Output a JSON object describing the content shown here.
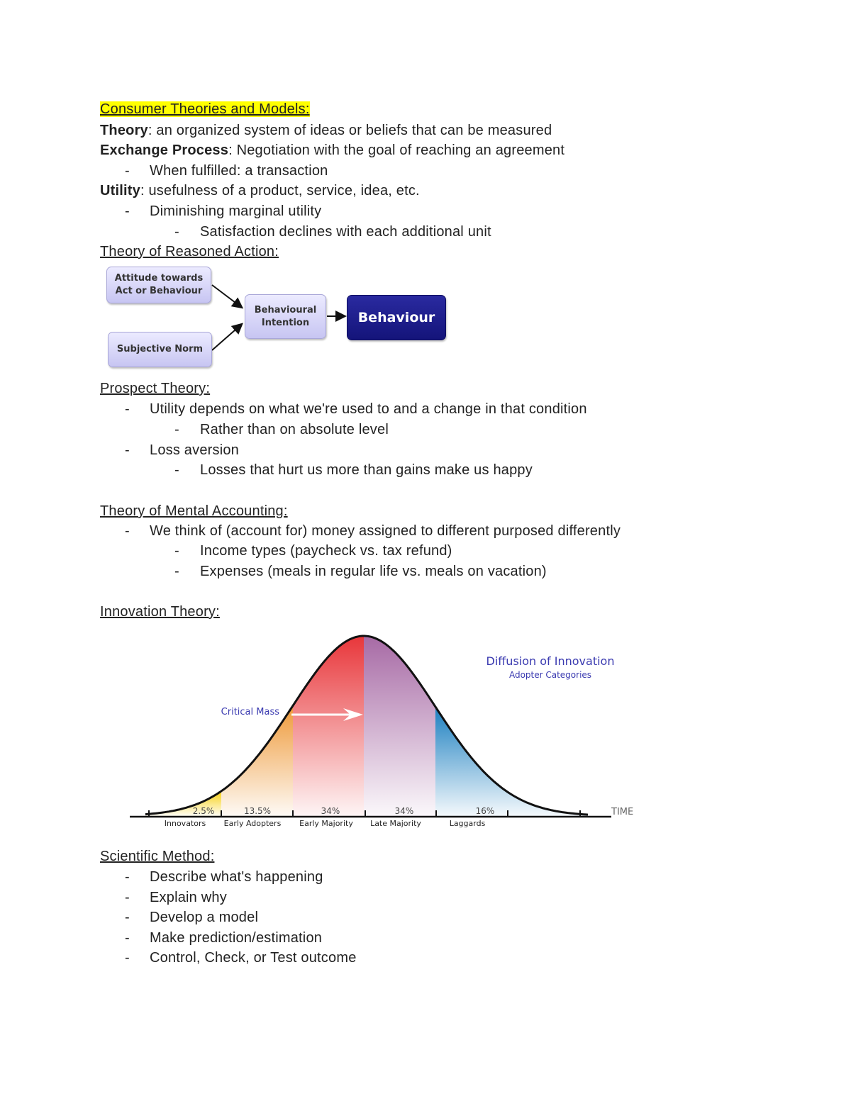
{
  "title": "Consumer Theories and Models:",
  "definitions": [
    {
      "term": "Theory",
      "text": ": an organized system of ideas or beliefs that can be measured"
    },
    {
      "term": "Exchange Process",
      "text": ": Negotiation with the goal of reaching an agreement"
    },
    {
      "bullet": "When fulfilled: a transaction"
    },
    {
      "term": "Utility",
      "text": ": usefulness of a product, service, idea, etc."
    },
    {
      "bullet": "Diminishing marginal utility"
    },
    {
      "subbullet": "Satisfaction declines with each additional unit"
    }
  ],
  "reasoned_action": {
    "heading": "Theory of Reasoned Action:",
    "attitude": "Attitude towards Act or Behaviour",
    "norm": "Subjective Norm",
    "intention": "Behavioural Intention",
    "behaviour": "Behaviour"
  },
  "prospect": {
    "heading": "Prospect Theory:",
    "b1": "Utility depends on what we're used to and a change in that condition",
    "b1a": "Rather than on absolute level",
    "b2": "Loss aversion",
    "b2a": "Losses that hurt us more than gains make us happy"
  },
  "mental": {
    "heading": "Theory of Mental Accounting:",
    "b1": "We think of (account for) money assigned to different purposed differently",
    "b1a": "Income types (paycheck vs. tax refund)",
    "b1b": "Expenses (meals in regular life vs. meals on vacation)"
  },
  "innovation": {
    "heading": "Innovation Theory:"
  },
  "chart_data": {
    "type": "area",
    "title": "Diffusion of Innovation",
    "subtitle": "Adopter Categories",
    "xlabel": "TIME",
    "annotation": "Critical Mass",
    "categories": [
      "Innovators",
      "Early Adopters",
      "Early Majority",
      "Late Majority",
      "Laggards"
    ],
    "labels": [
      "2.5%",
      "13.5%",
      "34%",
      "34%",
      "16%"
    ],
    "values": [
      2.5,
      13.5,
      34,
      34,
      16
    ],
    "colors": [
      "#f7d117",
      "#ee9a3a",
      "#e8363a",
      "#a76aa5",
      "#1b7fc0"
    ]
  },
  "scientific": {
    "heading": "Scientific Method:",
    "steps": [
      "Describe what's happening",
      "Explain why",
      "Develop a model",
      "Make prediction/estimation",
      "Control, Check, or Test outcome"
    ]
  }
}
